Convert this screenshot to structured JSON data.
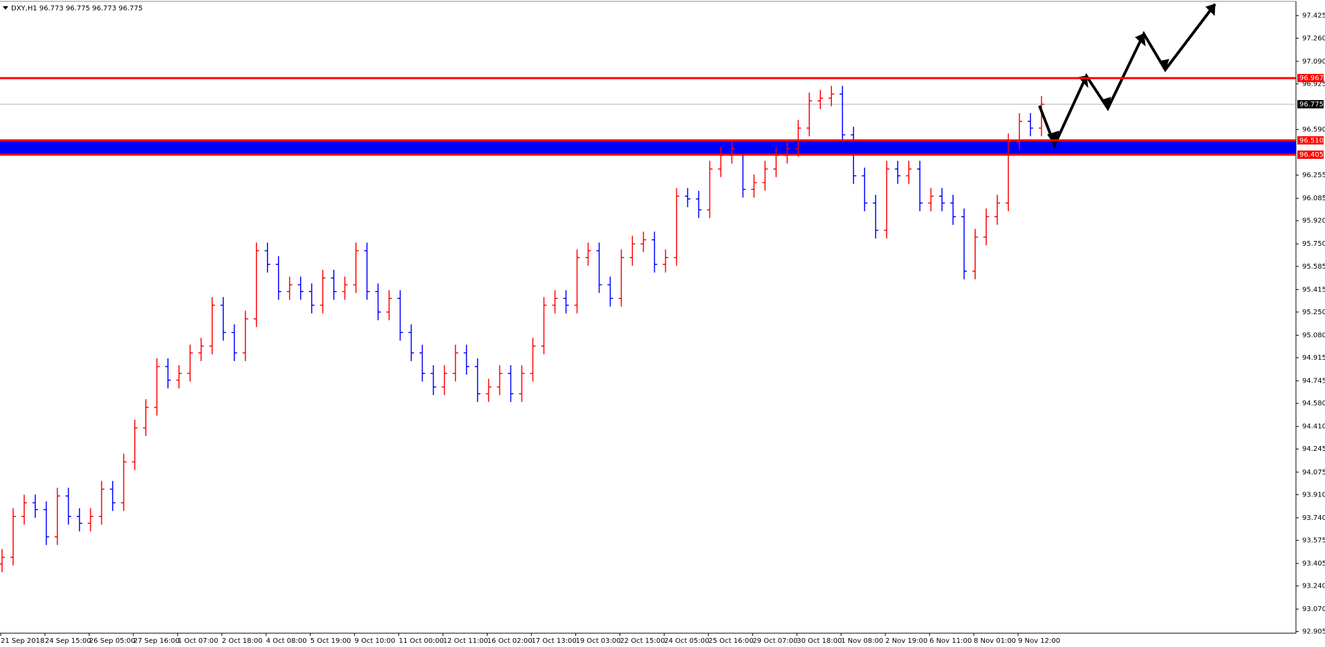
{
  "chart_data": {
    "type": "ohlc",
    "title": "DXY,H1  96.773 96.775 96.773 96.775",
    "up_color": "#ff0000",
    "down_color": "#0000ff",
    "ylim": [
      92.893,
      97.53
    ],
    "yticks": [
      97.425,
      {
        "value": 97.26,
        "label": "97.260"
      },
      {
        "value": 97.09,
        "label": "97.090"
      },
      96.925,
      {
        "value": 96.59,
        "label": "96.590"
      },
      96.255,
      96.085,
      {
        "value": 95.92,
        "label": "95.920"
      },
      {
        "value": 95.75,
        "label": "95.750"
      },
      95.585,
      95.415,
      {
        "value": 95.25,
        "label": "95.250"
      },
      {
        "value": 95.08,
        "label": "95.080"
      },
      94.915,
      94.745,
      {
        "value": 94.58,
        "label": "94.580"
      },
      {
        "value": 94.41,
        "label": "94.410"
      },
      94.245,
      94.075,
      {
        "value": 93.91,
        "label": "93.910"
      },
      {
        "value": 93.74,
        "label": "93.740"
      },
      93.575,
      93.405,
      {
        "value": 93.24,
        "label": "93.240"
      },
      {
        "value": 93.07,
        "label": "93.070"
      },
      92.905
    ],
    "xlabels": [
      "21 Sep 2018",
      "24 Sep 15:00",
      "26 Sep 05:00",
      "27 Sep 16:00",
      "1 Oct 07:00",
      "2 Oct 18:00",
      "4 Oct 08:00",
      "5 Oct 19:00",
      "9 Oct 10:00",
      "11 Oct 00:00",
      "12 Oct 11:00",
      "16 Oct 02:00",
      "17 Oct 13:00",
      "19 Oct 03:00",
      "22 Oct 15:00",
      "24 Oct 05:00",
      "25 Oct 16:00",
      "29 Oct 07:00",
      "30 Oct 18:00",
      "1 Nov 08:00",
      "2 Nov 19:00",
      "6 Nov 11:00",
      "8 Nov 01:00",
      "9 Nov 12:00"
    ],
    "open": [
      93.4,
      93.45,
      93.75,
      93.85,
      93.8,
      93.6,
      93.9,
      93.75,
      93.7,
      93.75,
      93.95,
      93.85,
      94.15,
      94.4,
      94.55,
      94.85,
      94.75,
      94.8,
      94.95,
      95.0,
      95.3,
      95.1,
      94.95,
      95.2,
      95.7,
      95.6,
      95.4,
      95.45,
      95.4,
      95.3,
      95.5,
      95.4,
      95.45,
      95.7,
      95.4,
      95.25,
      95.35,
      95.1,
      94.95,
      94.8,
      94.7,
      94.8,
      94.95,
      94.85,
      94.65,
      94.7,
      94.8,
      94.65,
      94.8,
      95.0,
      95.3,
      95.35,
      95.3,
      95.65,
      95.7,
      95.45,
      95.35,
      95.65,
      95.75,
      95.78,
      95.6,
      95.65,
      96.1,
      96.08,
      96.0,
      96.3,
      96.4,
      96.45,
      96.15,
      96.2,
      96.3,
      96.4,
      96.45,
      96.6,
      96.8,
      96.82,
      96.85,
      96.55,
      96.25,
      96.05,
      95.85,
      96.3,
      96.25,
      96.3,
      96.05,
      96.1,
      96.05,
      95.95,
      95.55,
      95.8,
      95.95,
      96.05,
      96.5,
      96.65,
      96.6
    ],
    "high": [
      93.51,
      93.81,
      93.91,
      93.91,
      93.86,
      93.96,
      93.96,
      93.81,
      93.81,
      94.01,
      94.01,
      94.21,
      94.46,
      94.61,
      94.91,
      94.91,
      94.86,
      95.01,
      95.06,
      95.36,
      95.36,
      95.16,
      95.26,
      95.76,
      95.76,
      95.66,
      95.51,
      95.51,
      95.46,
      95.56,
      95.56,
      95.51,
      95.76,
      95.76,
      95.46,
      95.41,
      95.41,
      95.16,
      95.01,
      94.86,
      94.86,
      95.01,
      95.01,
      94.91,
      94.76,
      94.86,
      94.86,
      94.86,
      95.06,
      95.36,
      95.41,
      95.41,
      95.71,
      95.76,
      95.76,
      95.51,
      95.71,
      95.81,
      95.84,
      95.84,
      95.71,
      96.16,
      96.16,
      96.14,
      96.36,
      96.46,
      96.51,
      96.51,
      96.26,
      96.36,
      96.46,
      96.51,
      96.66,
      96.86,
      96.88,
      96.91,
      96.91,
      96.61,
      96.31,
      96.11,
      96.36,
      96.36,
      96.36,
      96.36,
      96.16,
      96.16,
      96.11,
      96.01,
      95.86,
      96.01,
      96.11,
      96.56,
      96.71,
      96.71,
      96.835
    ],
    "low": [
      93.34,
      93.39,
      93.69,
      93.74,
      93.54,
      93.54,
      93.69,
      93.64,
      93.64,
      93.69,
      93.79,
      93.79,
      94.09,
      94.34,
      94.49,
      94.69,
      94.69,
      94.74,
      94.89,
      94.94,
      95.04,
      94.89,
      94.89,
      95.14,
      95.54,
      95.34,
      95.34,
      95.34,
      95.24,
      95.24,
      95.34,
      95.34,
      95.39,
      95.34,
      95.19,
      95.19,
      95.04,
      94.89,
      94.74,
      94.64,
      94.64,
      94.74,
      94.79,
      94.59,
      94.59,
      94.64,
      94.59,
      94.59,
      94.74,
      94.94,
      95.24,
      95.24,
      95.24,
      95.59,
      95.39,
      95.29,
      95.29,
      95.59,
      95.69,
      95.54,
      95.54,
      95.59,
      96.02,
      95.94,
      95.94,
      96.24,
      96.34,
      96.09,
      96.09,
      96.14,
      96.24,
      96.34,
      96.39,
      96.54,
      96.74,
      96.76,
      96.49,
      96.19,
      95.99,
      95.79,
      95.79,
      96.19,
      96.19,
      95.99,
      95.99,
      95.99,
      95.89,
      95.49,
      95.49,
      95.74,
      95.89,
      95.99,
      96.44,
      96.54,
      96.54
    ],
    "close": [
      93.45,
      93.75,
      93.85,
      93.8,
      93.6,
      93.9,
      93.75,
      93.7,
      93.75,
      93.95,
      93.85,
      94.15,
      94.4,
      94.55,
      94.85,
      94.75,
      94.8,
      94.95,
      95.0,
      95.3,
      95.1,
      94.95,
      95.2,
      95.7,
      95.6,
      95.4,
      95.45,
      95.4,
      95.3,
      95.5,
      95.4,
      95.45,
      95.7,
      95.4,
      95.25,
      95.35,
      95.1,
      94.95,
      94.8,
      94.7,
      94.8,
      94.95,
      94.85,
      94.65,
      94.7,
      94.8,
      94.65,
      94.8,
      95.0,
      95.3,
      95.35,
      95.3,
      95.65,
      95.7,
      95.45,
      95.35,
      95.65,
      95.75,
      95.78,
      95.6,
      95.65,
      96.1,
      96.08,
      96.0,
      96.3,
      96.4,
      96.45,
      96.15,
      96.2,
      96.3,
      96.4,
      96.45,
      96.6,
      96.8,
      96.82,
      96.85,
      96.55,
      96.25,
      96.05,
      95.85,
      96.3,
      96.25,
      96.3,
      96.05,
      96.1,
      96.05,
      95.95,
      95.55,
      95.8,
      95.95,
      96.05,
      96.5,
      96.65,
      96.6,
      96.775
    ],
    "levels": [
      {
        "value": 96.967,
        "label": "96.967",
        "color": "#ff0000"
      },
      {
        "value": 96.51,
        "label": "96.510",
        "color": "#ff0000"
      },
      {
        "value": 96.405,
        "label": "96.405",
        "color": "#ff0000"
      }
    ],
    "zone": {
      "from": 96.405,
      "to": 96.51,
      "color": "#0000ff"
    },
    "current": {
      "value": 96.775,
      "label": "96.775"
    }
  }
}
